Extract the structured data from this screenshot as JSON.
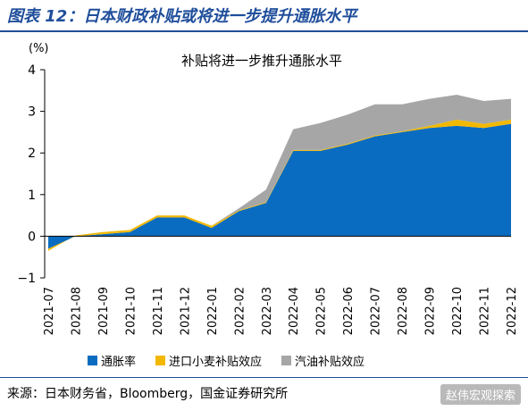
{
  "figure_title": "图表 12：日本财政补贴或将进一步提升通胀水平",
  "source": "来源：日本财务省，Bloomberg，国金证券研究所",
  "watermark": "赵伟宏观探索",
  "colors": {
    "accent": "#1f4e9b",
    "inflation": "#0a6cc0",
    "wheat_subsidy": "#f2b800",
    "gasoline_subsidy": "#a6a6a6"
  },
  "chart_data": {
    "type": "area",
    "title": "补贴将进一步推升通胀水平",
    "unit_label": "(%)",
    "ylim": [
      -1,
      4
    ],
    "yticks": [
      -1,
      0,
      1,
      2,
      3,
      4
    ],
    "categories": [
      "2021-07",
      "2021-08",
      "2021-09",
      "2021-10",
      "2021-11",
      "2021-12",
      "2022-01",
      "2022-02",
      "2022-03",
      "2022-04",
      "2022-05",
      "2022-06",
      "2022-07",
      "2022-08",
      "2022-09",
      "2022-10",
      "2022-11",
      "2022-12"
    ],
    "stacked": true,
    "series": [
      {
        "name": "通胀率",
        "color": "#0a6cc0",
        "values": [
          -0.3,
          0.0,
          0.05,
          0.1,
          0.45,
          0.45,
          0.2,
          0.6,
          0.8,
          2.05,
          2.05,
          2.2,
          2.4,
          2.5,
          2.6,
          2.65,
          2.6,
          2.7
        ]
      },
      {
        "name": "进口小麦补贴效应",
        "color": "#f2b800",
        "values": [
          -0.05,
          0.02,
          0.05,
          0.05,
          0.05,
          0.05,
          0.05,
          0.02,
          0.02,
          0.02,
          0.02,
          0.02,
          0.02,
          0.02,
          0.05,
          0.15,
          0.1,
          0.1
        ]
      },
      {
        "name": "汽油补贴效应",
        "color": "#a6a6a6",
        "values": [
          0.0,
          0.0,
          0.0,
          0.0,
          0.0,
          0.0,
          0.0,
          0.05,
          0.3,
          0.5,
          0.65,
          0.7,
          0.75,
          0.65,
          0.65,
          0.6,
          0.55,
          0.5
        ]
      }
    ]
  }
}
